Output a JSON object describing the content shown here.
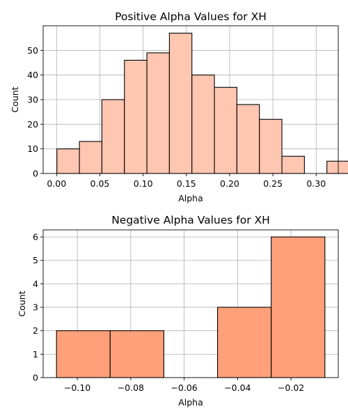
{
  "chart_data": [
    {
      "type": "bar",
      "title": "Positive Alpha Values for XH",
      "xlabel": "Alpha",
      "ylabel": "Count",
      "xlim": [
        -0.0155,
        0.3255
      ],
      "ylim": [
        0,
        60
      ],
      "xticks": [
        0.0,
        0.05,
        0.1,
        0.15,
        0.2,
        0.25,
        0.3
      ],
      "xtick_labels": [
        "0.00",
        "0.05",
        "0.10",
        "0.15",
        "0.20",
        "0.25",
        "0.30"
      ],
      "yticks": [
        0,
        10,
        20,
        30,
        40,
        50
      ],
      "ytick_labels": [
        "0",
        "10",
        "20",
        "30",
        "40",
        "50"
      ],
      "grid": true,
      "color": "#ffc6b1",
      "bins": [
        {
          "x0": 0.0004,
          "x1": 0.0264,
          "value": 10
        },
        {
          "x0": 0.0264,
          "x1": 0.0524,
          "value": 13
        },
        {
          "x0": 0.0524,
          "x1": 0.0784,
          "value": 30
        },
        {
          "x0": 0.0784,
          "x1": 0.1044,
          "value": 46
        },
        {
          "x0": 0.1044,
          "x1": 0.1304,
          "value": 49
        },
        {
          "x0": 0.1304,
          "x1": 0.1564,
          "value": 57
        },
        {
          "x0": 0.1564,
          "x1": 0.1824,
          "value": 40
        },
        {
          "x0": 0.1824,
          "x1": 0.2084,
          "value": 35
        },
        {
          "x0": 0.2084,
          "x1": 0.2344,
          "value": 28
        },
        {
          "x0": 0.2344,
          "x1": 0.2604,
          "value": 22
        },
        {
          "x0": 0.2604,
          "x1": 0.2864,
          "value": 7
        },
        {
          "x0": 0.2864,
          "x1": 0.3124,
          "value": 0
        },
        {
          "x0": 0.3124,
          "x1": 0.3384,
          "value": 5
        }
      ]
    },
    {
      "type": "bar",
      "title": "Negative Alpha Values for XH",
      "xlabel": "Alpha",
      "ylabel": "Count",
      "xlim": [
        -0.1128,
        -0.0023
      ],
      "ylim": [
        0,
        6.3
      ],
      "xticks": [
        -0.1,
        -0.08,
        -0.06,
        -0.04,
        -0.02
      ],
      "xtick_labels": [
        "−0.10",
        "−0.08",
        "−0.06",
        "−0.04",
        "−0.02"
      ],
      "yticks": [
        0,
        1,
        2,
        3,
        4,
        5,
        6
      ],
      "ytick_labels": [
        "0",
        "1",
        "2",
        "3",
        "4",
        "5",
        "6"
      ],
      "grid": true,
      "color": "#ffa07a",
      "bins": [
        {
          "x0": -0.1078,
          "x1": -0.0877,
          "value": 2
        },
        {
          "x0": -0.0877,
          "x1": -0.0676,
          "value": 2
        },
        {
          "x0": -0.0676,
          "x1": -0.0475,
          "value": 0
        },
        {
          "x0": -0.0475,
          "x1": -0.0274,
          "value": 3
        },
        {
          "x0": -0.0274,
          "x1": -0.0073,
          "value": 6
        }
      ]
    }
  ]
}
